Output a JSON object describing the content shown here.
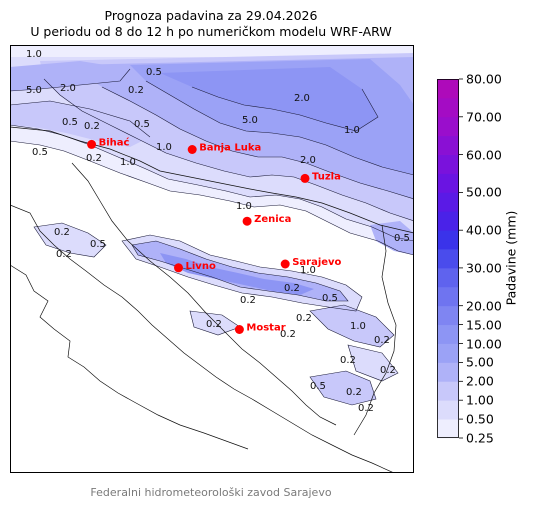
{
  "title_line1": "Prognoza padavina za 29.04.2026",
  "title_line2": "U periodu od 8 do 12 h po numeričkom modelu WRF-ARW",
  "colorbar": {
    "label": "Padavine (mm)",
    "levels": [
      "0.25",
      "0.50",
      "1.00",
      "2.00",
      "5.00",
      "10.00",
      "15.00",
      "20.00",
      "25.00",
      "30.00",
      "35.00",
      "40.00",
      "45.00",
      "50.00",
      "55.00",
      "60.00",
      "65.00",
      "70.00",
      "75.00",
      "80.00"
    ],
    "tick_labels": [
      "80.00",
      "70.00",
      "60.00",
      "50.00",
      "40.00",
      "30.00",
      "20.00",
      "15.00",
      "10.00",
      "5.00",
      "2.00",
      "1.00",
      "0.50",
      "0.25"
    ],
    "colors": [
      "#eeeefe",
      "#dcdcfc",
      "#c8c8fa",
      "#afb2f8",
      "#9ba2f6",
      "#8d95f4",
      "#7f85f2",
      "#6f74f0",
      "#5f63ee",
      "#4a4cec",
      "#3a33ea",
      "#4a22e8",
      "#5a1ae6",
      "#6a14e2",
      "#7a12dc",
      "#8a10d4",
      "#9a0ecc",
      "#a40cc4",
      "#ae0aba"
    ]
  },
  "cities": [
    {
      "name": "Bihać",
      "lon": 15.87,
      "lat": 44.81
    },
    {
      "name": "Banja Luka",
      "lon": 17.19,
      "lat": 44.77
    },
    {
      "name": "Tuzla",
      "lon": 18.67,
      "lat": 44.54
    },
    {
      "name": "Zenica",
      "lon": 17.91,
      "lat": 44.2
    },
    {
      "name": "Livno",
      "lon": 17.01,
      "lat": 43.83
    },
    {
      "name": "Sarajevo",
      "lon": 18.41,
      "lat": 43.86
    },
    {
      "name": "Mostar",
      "lon": 17.81,
      "lat": 43.34
    }
  ],
  "contour_labels": [
    "1.0",
    "5.0",
    "2.0",
    "0.5",
    "0.2",
    "1.0",
    "0.5",
    "2.0",
    "5.0",
    "1.0",
    "0.5",
    "0.2",
    "0.5",
    "0.2",
    "1.0",
    "2.0",
    "1.0",
    "1.0",
    "0.2",
    "0.2",
    "0.5",
    "0.2",
    "0.5",
    "0.2",
    "0.2",
    "1.0",
    "0.2",
    "0.2",
    "0.5",
    "0.2",
    "0.2",
    "0.2",
    "0.5",
    "0.2",
    "0.2"
  ],
  "footer": "Federalni hidrometeorološki zavod Sarajevo"
}
